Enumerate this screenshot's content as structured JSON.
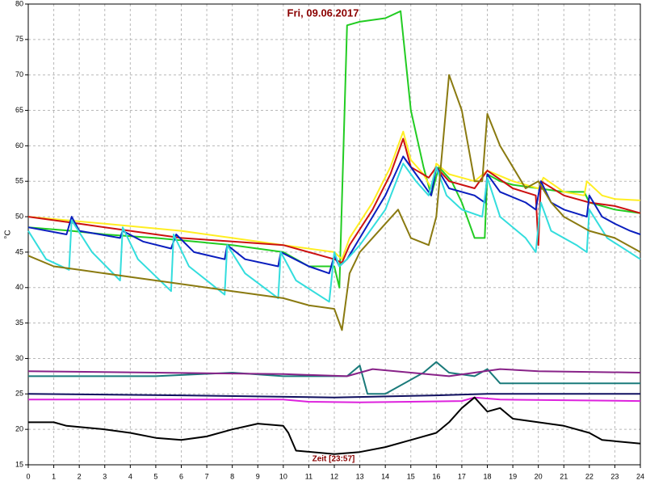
{
  "chart_data": {
    "type": "line",
    "title": "Fri, 09.06.2017",
    "ylabel": "°C",
    "xlabel": "Zeit [23:57]",
    "xlim": [
      0,
      24
    ],
    "xticks": [
      0,
      1,
      2,
      3,
      4,
      5,
      6,
      7,
      8,
      9,
      10,
      11,
      12,
      13,
      14,
      15,
      16,
      17,
      18,
      19,
      20,
      21,
      22,
      23,
      24
    ],
    "ylim": [
      15,
      80
    ],
    "yticks": [
      15,
      20,
      25,
      30,
      35,
      40,
      45,
      50,
      55,
      60,
      65,
      70,
      75,
      80
    ],
    "grid": true,
    "series": [
      {
        "color": "#22cc22",
        "x": [
          0,
          1.7,
          3,
          5,
          8,
          10,
          11,
          12,
          12.2,
          12.5,
          13,
          14,
          14.6,
          15,
          15.5,
          15.8,
          16.1,
          16.6,
          17,
          17.5,
          17.9,
          18,
          18.5,
          19,
          20,
          21,
          21.8,
          22,
          23,
          24
        ],
        "values": [
          48.5,
          48,
          47.5,
          47,
          46,
          45,
          43,
          43,
          40,
          77,
          77.5,
          78,
          79,
          65,
          57,
          53,
          57,
          55,
          52,
          47,
          47,
          56,
          55,
          54.5,
          54,
          53.5,
          53.5,
          52,
          51,
          50.5
        ]
      },
      {
        "color": "#ffee22",
        "x": [
          0,
          3,
          6,
          8,
          10,
          12,
          12.3,
          12.6,
          13.5,
          14.2,
          14.7,
          15,
          15.5,
          15.8,
          16,
          16.5,
          17.5,
          18,
          19,
          20,
          20.2,
          21,
          21.8,
          21.9,
          22.5,
          23,
          24
        ],
        "values": [
          50,
          49,
          48,
          47,
          46,
          45,
          44,
          47,
          52,
          57,
          62,
          58,
          56,
          54,
          57.5,
          56,
          55,
          56.5,
          55,
          54,
          55.5,
          53.5,
          53,
          55,
          53,
          52.5,
          52.3
        ]
      },
      {
        "color": "#cc1111",
        "x": [
          0,
          2,
          3,
          4,
          5,
          6,
          8,
          10,
          11,
          12,
          12.3,
          12.6,
          13.5,
          14.2,
          14.7,
          15,
          15.7,
          16,
          16.5,
          17.5,
          18,
          19,
          19.9,
          20,
          20.1,
          21,
          22,
          23,
          24
        ],
        "values": [
          50,
          49,
          48.5,
          48,
          47.5,
          47,
          46.5,
          46,
          45,
          44,
          43.5,
          46,
          51,
          56,
          61,
          57,
          55.5,
          57,
          55,
          54,
          56.5,
          54,
          53,
          46,
          55,
          53,
          52,
          51.5,
          50.5
        ]
      },
      {
        "color": "#0a1ebe",
        "x": [
          0,
          1.5,
          1.7,
          2,
          3.6,
          3.7,
          4.5,
          5.6,
          5.8,
          6.5,
          7.7,
          7.8,
          8.5,
          9.8,
          9.9,
          11,
          11.8,
          12,
          12.2,
          12.5,
          13,
          14,
          14.7,
          15.2,
          15.8,
          16,
          16.5,
          17.5,
          17.9,
          18,
          18.5,
          19.5,
          19.9,
          20.1,
          20.5,
          21,
          21.9,
          22,
          22.5,
          23,
          23.6,
          24
        ],
        "values": [
          48.5,
          47.5,
          50,
          48,
          47,
          48,
          46.5,
          45.5,
          47.5,
          45,
          44,
          46,
          44,
          43,
          45,
          43,
          42,
          44.5,
          43,
          44,
          47,
          53,
          58.5,
          56,
          53,
          57,
          54,
          53,
          52,
          56,
          53.5,
          52,
          51,
          55,
          52,
          51,
          50,
          53,
          50,
          49,
          48,
          47.5
        ]
      },
      {
        "color": "#33dddd",
        "x": [
          0,
          0.7,
          1.6,
          1.7,
          2.5,
          3.6,
          3.7,
          4.3,
          5.6,
          5.7,
          6.3,
          7.7,
          7.8,
          8.5,
          9.8,
          9.9,
          10.5,
          11.8,
          12,
          12.2,
          12.5,
          13,
          14,
          14.7,
          15.2,
          15.7,
          16,
          16.4,
          17,
          17.8,
          18,
          18.5,
          19.5,
          19.9,
          20.1,
          20.5,
          21.5,
          21.9,
          22,
          22.7,
          24
        ],
        "values": [
          48,
          44,
          42.5,
          49.5,
          45,
          41,
          48.5,
          44,
          39.5,
          47.5,
          43,
          39,
          46,
          42,
          38.5,
          45,
          41,
          38,
          45,
          43,
          44,
          46,
          51,
          57.5,
          55,
          53,
          57,
          53,
          51,
          50,
          55.5,
          50,
          47,
          45,
          52,
          48,
          46,
          45,
          51,
          47,
          44
        ]
      },
      {
        "color": "#8a7a10",
        "x": [
          0,
          1,
          2,
          4,
          6,
          8,
          10,
          11,
          12,
          12.3,
          12.6,
          13,
          14,
          14.5,
          15,
          15.7,
          16,
          16.5,
          17,
          17.5,
          17.8,
          18,
          18.5,
          19,
          19.5,
          20,
          20.5,
          21,
          22,
          23,
          24
        ],
        "values": [
          44.5,
          43,
          42.5,
          41.5,
          40.5,
          39.5,
          38.5,
          37.5,
          37,
          34,
          42,
          45,
          49,
          51,
          47,
          46,
          50,
          70,
          65,
          55,
          55,
          64.5,
          60,
          57,
          54,
          55,
          52,
          50,
          48,
          47,
          45
        ]
      },
      {
        "color": "#1a7a7a",
        "x": [
          0,
          2,
          5,
          8,
          10,
          12.5,
          13,
          13.3,
          14,
          14.5,
          15.5,
          16,
          16.5,
          17.5,
          18,
          18.5,
          24
        ],
        "values": [
          27.5,
          27.5,
          27.5,
          28,
          27.5,
          27.5,
          29,
          25,
          25,
          26,
          28,
          29.5,
          28,
          27.5,
          28.5,
          26.5,
          26.5
        ]
      },
      {
        "color": "#882288",
        "x": [
          0,
          5,
          10,
          12.5,
          13.5,
          15,
          16.5,
          17.5,
          18.5,
          20,
          24
        ],
        "values": [
          28.2,
          28,
          27.8,
          27.5,
          28.5,
          28,
          27.5,
          28,
          28.5,
          28.2,
          28
        ]
      },
      {
        "color": "#101060",
        "x": [
          0,
          6,
          12,
          16,
          18,
          24
        ],
        "values": [
          25,
          24.8,
          24.5,
          24.8,
          25,
          25
        ]
      },
      {
        "color": "#dd22dd",
        "x": [
          0,
          10,
          11,
          13,
          17,
          17.5,
          18.5,
          24
        ],
        "values": [
          24.2,
          24.2,
          23.9,
          23.8,
          24,
          24.5,
          24.2,
          24
        ]
      },
      {
        "color": "#000000",
        "x": [
          0,
          1,
          1.5,
          3,
          4,
          5,
          6,
          7,
          8,
          9,
          10,
          10.2,
          10.5,
          12,
          13,
          14,
          15,
          16,
          16.5,
          17,
          17.5,
          18,
          18.5,
          19,
          21,
          22,
          22.5,
          24
        ],
        "values": [
          21,
          21,
          20.5,
          20,
          19.5,
          18.8,
          18.5,
          19,
          20,
          20.8,
          20.5,
          19.5,
          17,
          16.5,
          16.8,
          17.5,
          18.5,
          19.5,
          21,
          23,
          24.5,
          22.5,
          23,
          21.5,
          20.5,
          19.5,
          18.5,
          18
        ]
      }
    ]
  }
}
